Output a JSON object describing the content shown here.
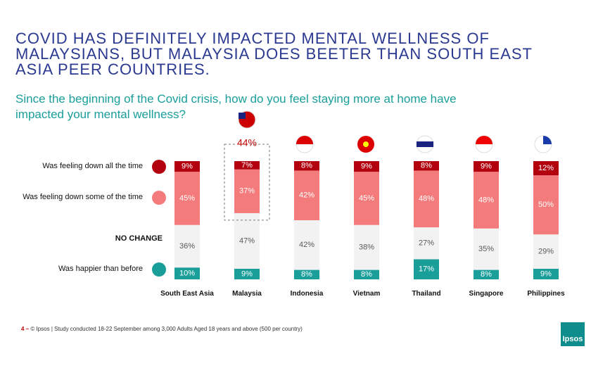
{
  "chart_data": {
    "type": "bar",
    "stacked": true,
    "title": "COVID HAS DEFINITELY IMPACTED MENTAL WELLNESS OF MALAYSIANS, BUT MALAYSIA DOES BEETER THAN SOUTH EAST ASIA PEER COUNTRIES.",
    "subtitle": "Since the beginning of the Covid crisis, how do you feel staying more at home have impacted your mental wellness?",
    "categories": [
      "South East Asia",
      "Malaysia",
      "Indonesia",
      "Vietnam",
      "Thailand",
      "Singapore",
      "Philippines"
    ],
    "series": [
      {
        "name": "Was happier than before",
        "color": "#1a9e9a",
        "label_color": "#ffffff",
        "values": [
          10,
          9,
          8,
          8,
          17,
          8,
          9
        ],
        "value_labels": [
          "10%",
          "9%",
          "8%",
          "8%",
          "17%",
          "8%",
          "9%"
        ]
      },
      {
        "name": "NO CHANGE",
        "color": "#f2f2f2",
        "label_color": "#595959",
        "legend_marker": false,
        "values": [
          36,
          47,
          42,
          38,
          27,
          35,
          29
        ],
        "value_labels": [
          "36%",
          "47%",
          "42%",
          "38%",
          "27%",
          "35%",
          "29%"
        ]
      },
      {
        "name": "Was feeling down some of the time",
        "color": "#f47b7b",
        "label_color": "#ffffff",
        "values": [
          45,
          37,
          42,
          45,
          48,
          48,
          50
        ],
        "value_labels": [
          "45%",
          "37%",
          "42%",
          "45%",
          "48%",
          "48%",
          "50%"
        ]
      },
      {
        "name": "Was feeling down all the time",
        "color": "#b3000f",
        "label_color": "#ffffff",
        "values": [
          9,
          7,
          8,
          9,
          8,
          9,
          12
        ],
        "value_labels": [
          "9%",
          "7%",
          "8%",
          "9%",
          "8%",
          "9%",
          "12%"
        ]
      }
    ],
    "annotations": [
      {
        "category": "Malaysia",
        "text": "44%"
      }
    ],
    "footer": {
      "page": "4 –",
      "text": "© Ipsos | Study conducted 18-22 September among 3,000 Adults Aged 18 years and above (500 per country)"
    },
    "logo": "Ipsos"
  }
}
